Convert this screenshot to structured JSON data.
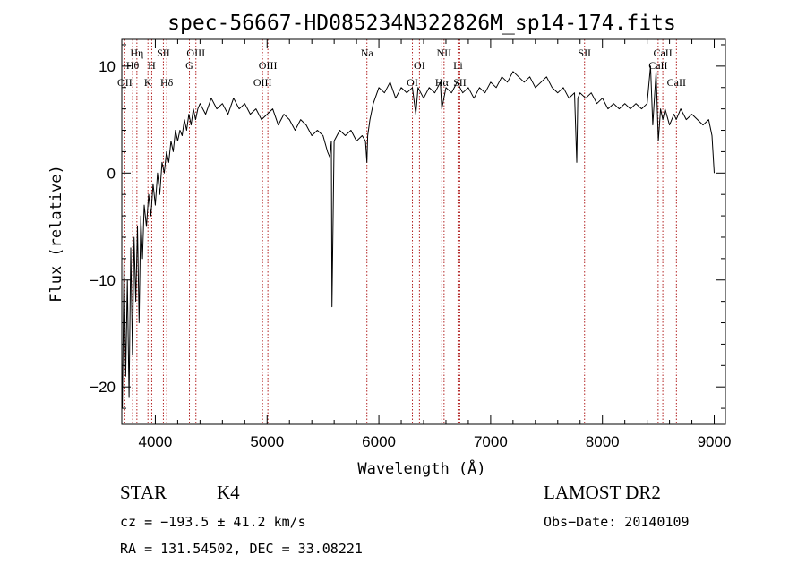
{
  "chart_data": {
    "type": "line",
    "title": "spec-56667-HD085234N322826M_sp14-174.fits",
    "xlabel": "Wavelength (Å)",
    "ylabel": "Flux (relative)",
    "xlim": [
      3700,
      9100
    ],
    "ylim": [
      -23.5,
      12.5
    ],
    "xticks": [
      "4000",
      "5000",
      "6000",
      "7000",
      "8000",
      "9000"
    ],
    "xtick_values": [
      4000,
      5000,
      6000,
      7000,
      8000,
      9000
    ],
    "yticks": [
      "10",
      "0",
      "−10",
      "−20"
    ],
    "ytick_values": [
      10,
      0,
      -10,
      -20
    ],
    "grid": false,
    "series": [
      {
        "x": [
          3705,
          3720,
          3735,
          3750,
          3765,
          3780,
          3795,
          3810,
          3825,
          3840,
          3855,
          3870,
          3885,
          3900,
          3920,
          3940,
          3960,
          3980,
          4000,
          4020,
          4040,
          4060,
          4080,
          4100,
          4120,
          4140,
          4160,
          4180,
          4200,
          4220,
          4240,
          4260,
          4280,
          4300,
          4320,
          4340,
          4360,
          4380,
          4400,
          4450,
          4500,
          4550,
          4600,
          4650,
          4700,
          4750,
          4800,
          4850,
          4900,
          4950,
          5000,
          5050,
          5100,
          5150,
          5200,
          5250,
          5300,
          5350,
          5400,
          5450,
          5500,
          5540,
          5560,
          5575,
          5580,
          5600,
          5650,
          5700,
          5750,
          5800,
          5850,
          5880,
          5893,
          5900,
          5920,
          5950,
          6000,
          6050,
          6100,
          6150,
          6200,
          6250,
          6300,
          6330,
          6350,
          6400,
          6450,
          6500,
          6550,
          6563,
          6600,
          6650,
          6700,
          6750,
          6800,
          6850,
          6900,
          6950,
          7000,
          7050,
          7100,
          7150,
          7200,
          7250,
          7300,
          7350,
          7400,
          7450,
          7500,
          7550,
          7600,
          7650,
          7700,
          7750,
          7770,
          7780,
          7800,
          7850,
          7900,
          7950,
          8000,
          8050,
          8100,
          8150,
          8200,
          8250,
          8300,
          8350,
          8400,
          8430,
          8450,
          8480,
          8500,
          8520,
          8540,
          8560,
          8600,
          8640,
          8660,
          8700,
          8750,
          8800,
          8850,
          8900,
          8950,
          8980,
          9000
        ],
        "y": [
          -22,
          -8,
          -19,
          -10,
          -21,
          -7,
          -17,
          -6,
          -12,
          -5,
          -14,
          -4,
          -8,
          -3,
          -5,
          -2,
          -4,
          -1,
          -3,
          0,
          -2,
          1,
          0,
          2,
          1,
          3,
          2,
          4,
          3,
          4,
          3.5,
          5,
          4,
          5.5,
          4.5,
          6,
          5,
          6,
          6.5,
          5.5,
          7,
          6,
          6.5,
          5.5,
          7,
          6,
          6.5,
          5.5,
          6,
          5,
          5.5,
          6,
          4.5,
          5.5,
          5,
          4,
          5,
          4.5,
          3.5,
          4,
          3.5,
          2,
          1.5,
          3,
          -12.5,
          3,
          4,
          3.5,
          4,
          3,
          3.5,
          3,
          1,
          3.5,
          5,
          6.5,
          8,
          7.5,
          8.5,
          7,
          8,
          7.5,
          8,
          5.5,
          8,
          7,
          8,
          7.5,
          8.5,
          6,
          8,
          7.5,
          8.5,
          7.5,
          8,
          7,
          8,
          7.5,
          8.5,
          8,
          9,
          8.5,
          9.5,
          9,
          8.5,
          9,
          8,
          8.5,
          9,
          8,
          7.5,
          8,
          7,
          7.5,
          1,
          7,
          7.5,
          7,
          7.5,
          6.5,
          7,
          6,
          6.5,
          6,
          6.5,
          6,
          6.5,
          6,
          6.5,
          10,
          4.5,
          9.5,
          3,
          6,
          5,
          6,
          4.5,
          5.5,
          5,
          6,
          5,
          5.5,
          5,
          4.5,
          5,
          3.5,
          0
        ]
      }
    ],
    "line_markers": [
      {
        "label": "OII",
        "x": 3727,
        "row": 3
      },
      {
        "label": "Hη",
        "x": 3835,
        "row": 1
      },
      {
        "label": "Hθ",
        "x": 3797,
        "row": 2
      },
      {
        "label": "K",
        "x": 3934,
        "row": 3
      },
      {
        "label": "H",
        "x": 3968,
        "row": 2
      },
      {
        "label": "SII",
        "x": 4072,
        "row": 1
      },
      {
        "label": "Hδ",
        "x": 4102,
        "row": 3
      },
      {
        "label": "OIII",
        "x": 4363,
        "row": 1
      },
      {
        "label": "G",
        "x": 4305,
        "row": 2
      },
      {
        "label": "OIII",
        "x": 5007,
        "row": 2
      },
      {
        "label": "OIII",
        "x": 4959,
        "row": 3
      },
      {
        "label": "Na",
        "x": 5893,
        "row": 1
      },
      {
        "label": "OI",
        "x": 6363,
        "row": 2
      },
      {
        "label": "OI",
        "x": 6300,
        "row": 3
      },
      {
        "label": "NII",
        "x": 6583,
        "row": 1
      },
      {
        "label": "Hα",
        "x": 6563,
        "row": 3
      },
      {
        "label": "Li",
        "x": 6708,
        "row": 2
      },
      {
        "label": "SII",
        "x": 6724,
        "row": 3
      },
      {
        "label": "SII",
        "x": 7840,
        "row": 1
      },
      {
        "label": "CaII",
        "x": 8540,
        "row": 1
      },
      {
        "label": "CaII",
        "x": 8498,
        "row": 2
      },
      {
        "label": "CaII",
        "x": 8662,
        "row": 3
      }
    ]
  },
  "info": {
    "object_class": "STAR",
    "subclass": "K4",
    "survey": "LAMOST DR2",
    "redshift": "cz = −193.5 ± 41.2 km/s",
    "obs_date": "Obs−Date: 20140109",
    "coords": "RA = 131.54502, DEC =  33.08221"
  },
  "colors": {
    "spectrum": "#000000",
    "line_markers": "#b22222",
    "axes": "#000000"
  }
}
